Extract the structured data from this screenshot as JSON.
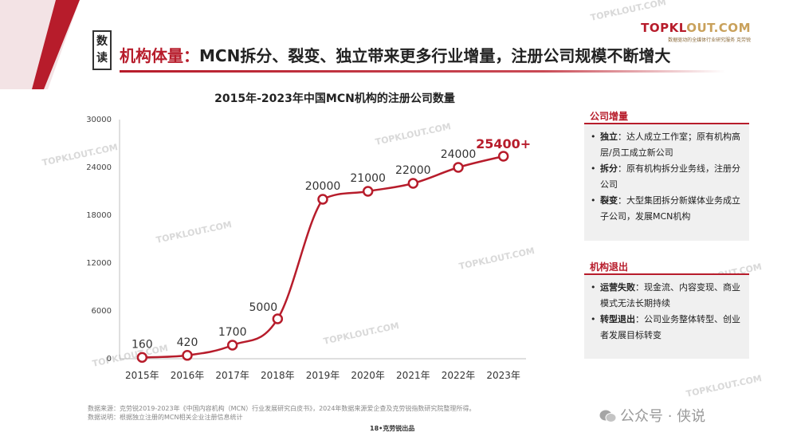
{
  "header": {
    "section_badge": "数读",
    "title_highlight": "机构体量：",
    "title_rest": "MCN拆分、裂变、独立带来更多行业增量，注册公司规模不断增大"
  },
  "brand": {
    "name_main": "TOPKL",
    "name_accent": "OUT.COM",
    "subtitle": "数据驱动的全媒体行业研究服务  克劳锐"
  },
  "colors": {
    "accent": "#b71c2b",
    "line": "#b71c2b",
    "panel_bg": "#f0f0f0"
  },
  "chart_data": {
    "type": "line",
    "title": "2015年-2023年中国MCN机构的注册公司数量",
    "xlabel": "",
    "ylabel": "",
    "categories": [
      "2015年",
      "2016年",
      "2017年",
      "2018年",
      "2019年",
      "2020年",
      "2021年",
      "2022年",
      "2023年"
    ],
    "values": [
      160,
      420,
      1700,
      5000,
      20000,
      21000,
      22000,
      24000,
      25400
    ],
    "data_labels": [
      "160",
      "420",
      "1700",
      "5000",
      "20000",
      "21000",
      "22000",
      "24000",
      "25400+"
    ],
    "yticks": [
      "0",
      "6000",
      "12000",
      "18000",
      "24000",
      "30000"
    ],
    "ylim": [
      0,
      30000
    ],
    "grid": false,
    "legend": "none"
  },
  "panel_increase": {
    "heading": "公司增量",
    "items": [
      {
        "bold": "独立",
        "text": "：达人成立工作室；原有机构高层/员工成立新公司"
      },
      {
        "bold": "拆分",
        "text": "：原有机构拆分业务线，注册分公司"
      },
      {
        "bold": "裂变",
        "text": "：大型集团拆分新媒体业务成立子公司，发展MCN机构"
      }
    ]
  },
  "panel_exit": {
    "heading": "机构退出",
    "items": [
      {
        "bold": "运营失败",
        "text": "：现金流、内容变现、商业模式无法长期持续"
      },
      {
        "bold": "转型退出",
        "text": "：公司业务整体转型、创业者发展目标转变"
      }
    ]
  },
  "footer": {
    "source_line1": "数据来源：克劳锐2019-2023年《中国内容机构（MCN）行业发展研究白皮书》，2024年数据来源爱企查及克劳锐指数研究院整理所得。",
    "source_line2": "数据说明：根据独立注册的MCN相关企业注册信息统计",
    "page_label": "18•克劳锐出品",
    "wechat_label": "公众号 · 侠说"
  },
  "watermark": "TOPKLOUT.COM"
}
